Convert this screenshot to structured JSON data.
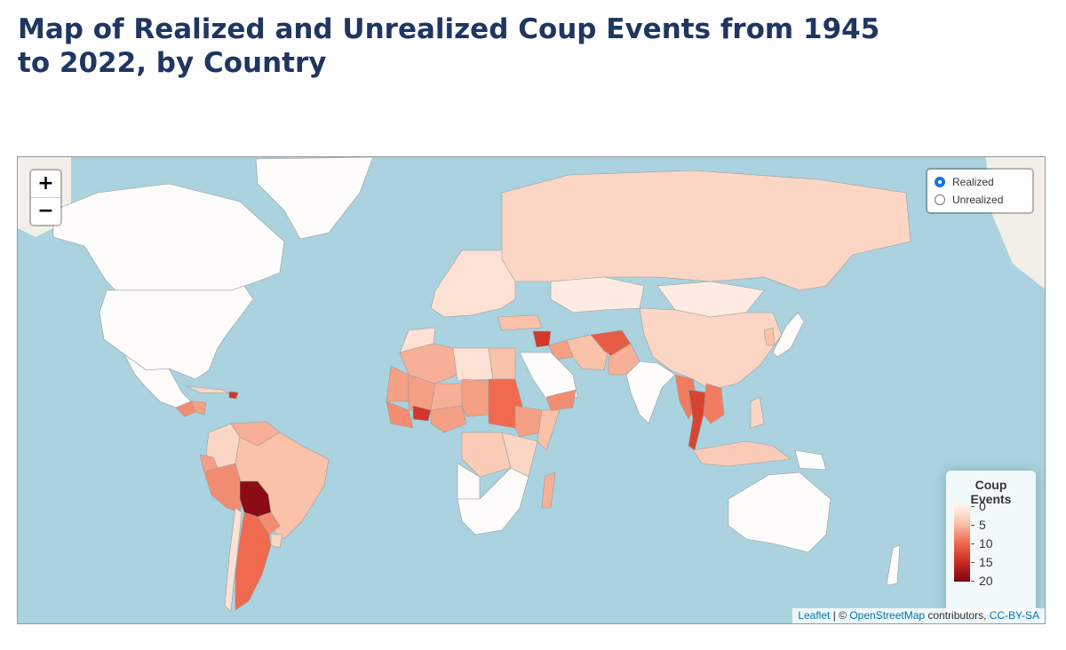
{
  "page": {
    "title": "Map of Realized and Unrealized Coup Events from 1945 to 2022, by Country"
  },
  "zoom": {
    "in_label": "+",
    "out_label": "−"
  },
  "layers": {
    "options": [
      {
        "label": "Realized",
        "selected": true
      },
      {
        "label": "Unrealized",
        "selected": false
      }
    ]
  },
  "legend": {
    "title": "Coup Events",
    "ticks": [
      "0",
      "5",
      "10",
      "15",
      "20"
    ],
    "colors": [
      "#fff5f0",
      "#f9c2a9",
      "#ef6a4e",
      "#c92a23",
      "#7a0612"
    ]
  },
  "attribution": {
    "leaflet": "Leaflet",
    "separator": " | © ",
    "osm": "OpenStreetMap",
    "contributors": " contributors, ",
    "license": "CC-BY-SA"
  },
  "colors": {
    "ocean": "#aad3df",
    "land_none": "#fdfcfb",
    "land_outside": "#f2efe9",
    "border": "#9b9b9b"
  },
  "countries": [
    {
      "name": "Canada",
      "events": 0
    },
    {
      "name": "United States",
      "events": 0
    },
    {
      "name": "Greenland",
      "events": 0
    },
    {
      "name": "Mexico",
      "events": 0
    },
    {
      "name": "Guatemala",
      "events": 8
    },
    {
      "name": "Honduras",
      "events": 7
    },
    {
      "name": "Haiti",
      "events": 14
    },
    {
      "name": "Cuba",
      "events": 3
    },
    {
      "name": "Colombia",
      "events": 3
    },
    {
      "name": "Venezuela",
      "events": 6
    },
    {
      "name": "Ecuador",
      "events": 7
    },
    {
      "name": "Peru",
      "events": 8
    },
    {
      "name": "Brazil",
      "events": 5
    },
    {
      "name": "Bolivia",
      "events": 19
    },
    {
      "name": "Paraguay",
      "events": 8
    },
    {
      "name": "Chile",
      "events": 2
    },
    {
      "name": "Argentina",
      "events": 10
    },
    {
      "name": "Uruguay",
      "events": 3
    },
    {
      "name": "Russia",
      "events": 3
    },
    {
      "name": "Kazakhstan",
      "events": 1
    },
    {
      "name": "Mongolia",
      "events": 1
    },
    {
      "name": "China",
      "events": 3
    },
    {
      "name": "Europe",
      "events": 2
    },
    {
      "name": "Turkey",
      "events": 5
    },
    {
      "name": "Syria",
      "events": 14
    },
    {
      "name": "Iraq",
      "events": 7
    },
    {
      "name": "Iran",
      "events": 5
    },
    {
      "name": "Afghanistan",
      "events": 11
    },
    {
      "name": "Pakistan",
      "events": 6
    },
    {
      "name": "India",
      "events": 0
    },
    {
      "name": "Saudi Arabia",
      "events": 0
    },
    {
      "name": "Yemen",
      "events": 8
    },
    {
      "name": "Myanmar",
      "events": 9
    },
    {
      "name": "Thailand",
      "events": 13
    },
    {
      "name": "Indochina",
      "events": 9
    },
    {
      "name": "Indonesia",
      "events": 4
    },
    {
      "name": "Philippines",
      "events": 3
    },
    {
      "name": "Korea",
      "events": 5
    },
    {
      "name": "Japan",
      "events": 0
    },
    {
      "name": "Papua New Guinea",
      "events": 0
    },
    {
      "name": "Australia",
      "events": 0
    },
    {
      "name": "New Zealand",
      "events": 0
    },
    {
      "name": "Madagascar",
      "events": 6
    },
    {
      "name": "Morocco",
      "events": 2
    },
    {
      "name": "Algeria",
      "events": 6
    },
    {
      "name": "Libya",
      "events": 2
    },
    {
      "name": "Egypt",
      "events": 5
    },
    {
      "name": "Mauritania",
      "events": 7
    },
    {
      "name": "Mali",
      "events": 7
    },
    {
      "name": "Niger",
      "events": 6
    },
    {
      "name": "Chad",
      "events": 7
    },
    {
      "name": "Sudan",
      "events": 10
    },
    {
      "name": "Ethiopia",
      "events": 7
    },
    {
      "name": "Somalia",
      "events": 5
    },
    {
      "name": "Nigeria",
      "events": 7
    },
    {
      "name": "Burkina Faso",
      "events": 14
    },
    {
      "name": "Guinea",
      "events": 8
    },
    {
      "name": "DR Congo",
      "events": 4
    },
    {
      "name": "Angola",
      "events": 0
    },
    {
      "name": "Southern Africa",
      "events": 0
    },
    {
      "name": "East Africa",
      "events": 3
    }
  ]
}
